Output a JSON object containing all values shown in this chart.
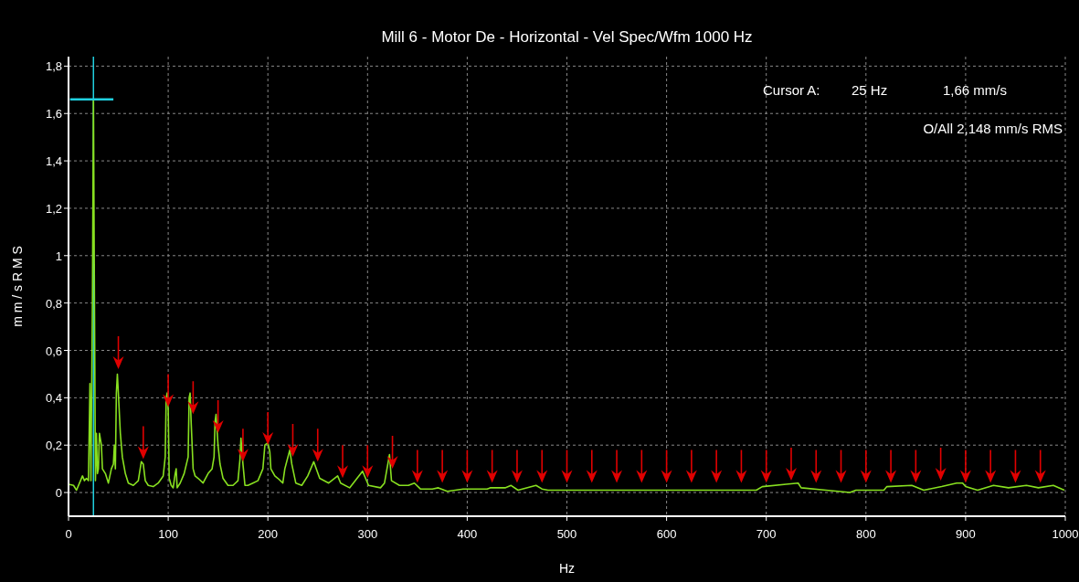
{
  "chart_data": {
    "type": "line",
    "title": "Mill 6 - Motor De - Horizontal - Vel Spec/Wfm 1000 Hz",
    "xlabel": "Hz",
    "ylabel": "m m / s R M S",
    "xlim": [
      0,
      1000
    ],
    "xticks": [
      0,
      100,
      200,
      300,
      400,
      500,
      600,
      700,
      800,
      900,
      1000
    ],
    "ylim": [
      -0.1,
      1.84
    ],
    "yticks": [
      0,
      {
        "value": 0.2,
        "label": "0,2"
      },
      {
        "value": 0.4,
        "label": "0,4"
      },
      {
        "value": 0.6,
        "label": "0,6"
      },
      {
        "value": 0.8,
        "label": "0,8"
      },
      1,
      {
        "value": 1.2,
        "label": "1,2"
      },
      {
        "value": 1.4,
        "label": "1,4"
      },
      {
        "value": 1.6,
        "label": "1,6"
      },
      {
        "value": 1.8,
        "label": "1,8"
      }
    ],
    "grid": true,
    "annotations": [
      "Cursor A:",
      "25 Hz",
      "1,66 mm/s",
      "O/All 2,148 mm/s RMS"
    ],
    "ref_lines": [
      {
        "axis": "x",
        "value": 25,
        "color": "#20d0e0"
      }
    ],
    "series": [
      {
        "color": "#88e020",
        "x": [
          0,
          5,
          8,
          12,
          14,
          16,
          18,
          20,
          21.5,
          22.5,
          24,
          25,
          26,
          27,
          28,
          29,
          30,
          31,
          33,
          34,
          37,
          40,
          43,
          45,
          46,
          47,
          48,
          49,
          50,
          52,
          54,
          57,
          60,
          65,
          70,
          73,
          75,
          77,
          80,
          85,
          90,
          95,
          97,
          98,
          99,
          100,
          101,
          103,
          105,
          107,
          108,
          109,
          112,
          116,
          120,
          121,
          122,
          123,
          125,
          127,
          130,
          135,
          140,
          144,
          146,
          147,
          148,
          150,
          152,
          155,
          160,
          165,
          170,
          172,
          173,
          175,
          177,
          180,
          185,
          190,
          195,
          197,
          200,
          202,
          203,
          207,
          210,
          215,
          217,
          222,
          224,
          228,
          234,
          240,
          246,
          252,
          261,
          270,
          273,
          282,
          295,
          301,
          313,
          317,
          322,
          324,
          332,
          341,
          347,
          353,
          365,
          371,
          380,
          396,
          420,
          423,
          438,
          444,
          451,
          469,
          475,
          481,
          550,
          600,
          690,
          696,
          720,
          732,
          735,
          760,
          784,
          790,
          818,
          821,
          846,
          858,
          876,
          891,
          897,
          900,
          912,
          928,
          943,
          961,
          973,
          988,
          999
        ],
        "values": [
          0.035,
          0.03,
          0.01,
          0.05,
          0.07,
          0.05,
          0.06,
          0.05,
          0.46,
          0.05,
          0.82,
          1.66,
          0.82,
          0.05,
          0.25,
          0.08,
          0.1,
          0.25,
          0.2,
          0.1,
          0.08,
          0.04,
          0.1,
          0.12,
          0.2,
          0.1,
          0.42,
          0.5,
          0.42,
          0.25,
          0.15,
          0.08,
          0.04,
          0.03,
          0.05,
          0.13,
          0.12,
          0.05,
          0.03,
          0.025,
          0.04,
          0.07,
          0.15,
          0.4,
          0.42,
          0.35,
          0.06,
          0.03,
          0.02,
          0.08,
          0.1,
          0.02,
          0.04,
          0.08,
          0.15,
          0.4,
          0.42,
          0.3,
          0.1,
          0.07,
          0.06,
          0.04,
          0.08,
          0.1,
          0.15,
          0.3,
          0.33,
          0.2,
          0.12,
          0.06,
          0.03,
          0.03,
          0.05,
          0.14,
          0.23,
          0.12,
          0.03,
          0.03,
          0.04,
          0.05,
          0.1,
          0.2,
          0.21,
          0.17,
          0.1,
          0.07,
          0.06,
          0.04,
          0.1,
          0.18,
          0.12,
          0.04,
          0.03,
          0.07,
          0.13,
          0.06,
          0.04,
          0.07,
          0.04,
          0.02,
          0.09,
          0.03,
          0.02,
          0.04,
          0.16,
          0.05,
          0.03,
          0.03,
          0.04,
          0.015,
          0.015,
          0.02,
          0.005,
          0.015,
          0.015,
          0.02,
          0.02,
          0.03,
          0.01,
          0.03,
          0.015,
          0.01,
          0.01,
          0.01,
          0.01,
          0.025,
          0.035,
          0.04,
          0.02,
          0.01,
          0.0,
          0.01,
          0.01,
          0.025,
          0.03,
          0.01,
          0.025,
          0.04,
          0.04,
          0.025,
          0.01,
          0.03,
          0.02,
          0.03,
          0.02,
          0.03,
          0.01
        ]
      },
      {
        "type": "scatter",
        "color": "#e00000",
        "x": [
          50,
          75,
          100,
          125,
          150,
          175,
          200,
          225,
          250,
          275,
          300,
          325,
          350,
          375,
          400,
          425,
          450,
          475,
          500,
          525,
          550,
          575,
          600,
          625,
          650,
          675,
          700,
          725,
          750,
          775,
          800,
          825,
          850,
          875,
          900,
          925,
          950,
          975
        ],
        "values": [
          0.59,
          0.21,
          0.43,
          0.4,
          0.32,
          0.2,
          0.27,
          0.22,
          0.2,
          0.13,
          0.13,
          0.17,
          0.11,
          0.11,
          0.11,
          0.11,
          0.11,
          0.11,
          0.11,
          0.11,
          0.11,
          0.11,
          0.11,
          0.11,
          0.11,
          0.11,
          0.11,
          0.12,
          0.11,
          0.11,
          0.11,
          0.11,
          0.11,
          0.12,
          0.11,
          0.11,
          0.11,
          0.11
        ]
      },
      {
        "type": "line",
        "color": "#20d0e0",
        "x": [
          1.5,
          45
        ],
        "values": [
          1.66,
          1.66
        ]
      }
    ]
  }
}
